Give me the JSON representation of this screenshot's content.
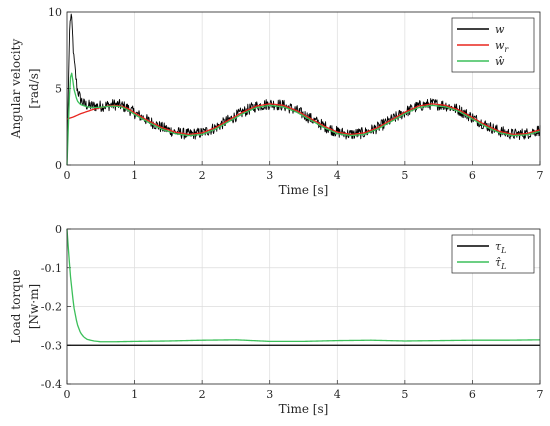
{
  "chart_data": [
    {
      "type": "line",
      "xlabel": "Time [s]",
      "ylabel": "Angular velocity",
      "ylabel_unit": "[rad/s]",
      "xlim": [
        0,
        7
      ],
      "ylim": [
        0,
        10
      ],
      "xticks": [
        "0",
        "1",
        "2",
        "3",
        "4",
        "5",
        "6",
        "7"
      ],
      "yticks": [
        "0",
        "5",
        "10"
      ],
      "grid": true,
      "legend": "top-right",
      "legend_labels": [
        "w",
        "w",
        "ŵ"
      ],
      "legend_subscripts": [
        "",
        "r",
        ""
      ],
      "series": [
        {
          "name": "w",
          "color": "#000000",
          "noisy": true,
          "x": [
            0,
            0.02,
            0.04,
            0.06,
            0.08,
            0.1,
            0.15,
            0.2,
            0.25,
            0.3,
            0.4,
            0.5,
            0.6,
            0.7,
            0.8,
            0.9,
            1.0,
            1.2,
            1.4,
            1.6,
            1.8,
            2.0,
            2.2,
            2.4,
            2.6,
            2.8,
            3.0,
            3.2,
            3.4,
            3.6,
            3.8,
            4.0,
            4.2,
            4.4,
            4.6,
            4.8,
            5.0,
            5.2,
            5.4,
            5.6,
            5.8,
            6.0,
            6.2,
            6.4,
            6.6,
            6.8,
            7.0
          ],
          "y": [
            0,
            5.0,
            9.0,
            9.9,
            8.7,
            7.0,
            5.0,
            4.3,
            4.0,
            3.9,
            3.85,
            3.85,
            3.9,
            3.95,
            3.9,
            3.7,
            3.4,
            2.9,
            2.45,
            2.15,
            2.0,
            2.1,
            2.45,
            2.95,
            3.45,
            3.85,
            4.0,
            3.9,
            3.55,
            3.05,
            2.55,
            2.15,
            2.0,
            2.1,
            2.45,
            2.95,
            3.45,
            3.85,
            4.0,
            3.9,
            3.6,
            3.1,
            2.6,
            2.2,
            2.0,
            2.05,
            2.3
          ]
        },
        {
          "name": "w_r",
          "color": "#e8261f",
          "x": [
            0,
            0.1,
            0.2,
            0.3,
            0.4,
            0.5,
            0.6,
            0.7,
            0.8,
            0.9,
            1.0,
            1.2,
            1.4,
            1.6,
            1.8,
            2.0,
            2.2,
            2.4,
            2.6,
            2.8,
            3.0,
            3.2,
            3.4,
            3.6,
            3.8,
            4.0,
            4.2,
            4.4,
            4.6,
            4.8,
            5.0,
            5.2,
            5.4,
            5.6,
            5.8,
            6.0,
            6.2,
            6.4,
            6.6,
            6.8,
            7.0
          ],
          "y": [
            3.0,
            3.15,
            3.35,
            3.5,
            3.65,
            3.75,
            3.85,
            3.9,
            3.85,
            3.7,
            3.4,
            2.9,
            2.45,
            2.15,
            2.0,
            2.1,
            2.45,
            2.95,
            3.45,
            3.85,
            4.0,
            3.9,
            3.55,
            3.05,
            2.55,
            2.15,
            2.0,
            2.1,
            2.45,
            2.95,
            3.45,
            3.85,
            4.0,
            3.9,
            3.6,
            3.1,
            2.6,
            2.2,
            2.0,
            2.05,
            2.3
          ]
        },
        {
          "name": "ŵ",
          "color": "#3cbf5a",
          "x": [
            0,
            0.02,
            0.04,
            0.06,
            0.08,
            0.1,
            0.15,
            0.2,
            0.3,
            0.4,
            0.5,
            0.6,
            0.7,
            0.8,
            0.9,
            1.0,
            1.2,
            1.4,
            1.6,
            1.8,
            2.0,
            2.2,
            2.4,
            2.6,
            2.8,
            3.0,
            3.2,
            3.4,
            3.6,
            3.8,
            4.0,
            4.2,
            4.4,
            4.6,
            4.8,
            5.0,
            5.2,
            5.4,
            5.6,
            5.8,
            6.0,
            6.2,
            6.4,
            6.6,
            6.8,
            7.0
          ],
          "y": [
            0,
            2.5,
            5.0,
            6.2,
            5.8,
            5.0,
            4.2,
            3.95,
            3.8,
            3.75,
            3.78,
            3.82,
            3.85,
            3.8,
            3.6,
            3.3,
            2.8,
            2.35,
            2.05,
            1.92,
            2.0,
            2.35,
            2.85,
            3.35,
            3.75,
            3.9,
            3.8,
            3.45,
            2.95,
            2.45,
            2.05,
            1.92,
            2.0,
            2.35,
            2.85,
            3.35,
            3.75,
            3.9,
            3.8,
            3.5,
            3.0,
            2.5,
            2.1,
            1.92,
            1.97,
            2.2
          ]
        }
      ]
    },
    {
      "type": "line",
      "xlabel": "Time [s]",
      "ylabel": "Load torque",
      "ylabel_unit": "[Nw·m]",
      "xlim": [
        0,
        7
      ],
      "ylim": [
        -0.4,
        0
      ],
      "xticks": [
        "0",
        "1",
        "2",
        "3",
        "4",
        "5",
        "6",
        "7"
      ],
      "yticks": [
        "0",
        "-0.1",
        "-0.2",
        "-0.3",
        "-0.4"
      ],
      "grid": true,
      "legend": "top-right",
      "legend_labels": [
        "τ",
        "τ̂"
      ],
      "legend_subscripts": [
        "L",
        "L"
      ],
      "series": [
        {
          "name": "τ_L",
          "color": "#000000",
          "x": [
            0,
            7
          ],
          "y": [
            -0.3,
            -0.3
          ]
        },
        {
          "name": "τ̂_L",
          "color": "#3cbf5a",
          "x": [
            0,
            0.02,
            0.05,
            0.1,
            0.15,
            0.2,
            0.25,
            0.3,
            0.4,
            0.5,
            0.7,
            1.0,
            1.5,
            2.0,
            2.5,
            3.0,
            3.5,
            4.0,
            4.5,
            5.0,
            5.5,
            6.0,
            6.5,
            7.0
          ],
          "y": [
            0,
            -0.05,
            -0.12,
            -0.2,
            -0.245,
            -0.268,
            -0.279,
            -0.285,
            -0.289,
            -0.291,
            -0.291,
            -0.29,
            -0.289,
            -0.287,
            -0.286,
            -0.29,
            -0.29,
            -0.288,
            -0.287,
            -0.289,
            -0.288,
            -0.287,
            -0.287,
            -0.286
          ]
        }
      ]
    }
  ]
}
